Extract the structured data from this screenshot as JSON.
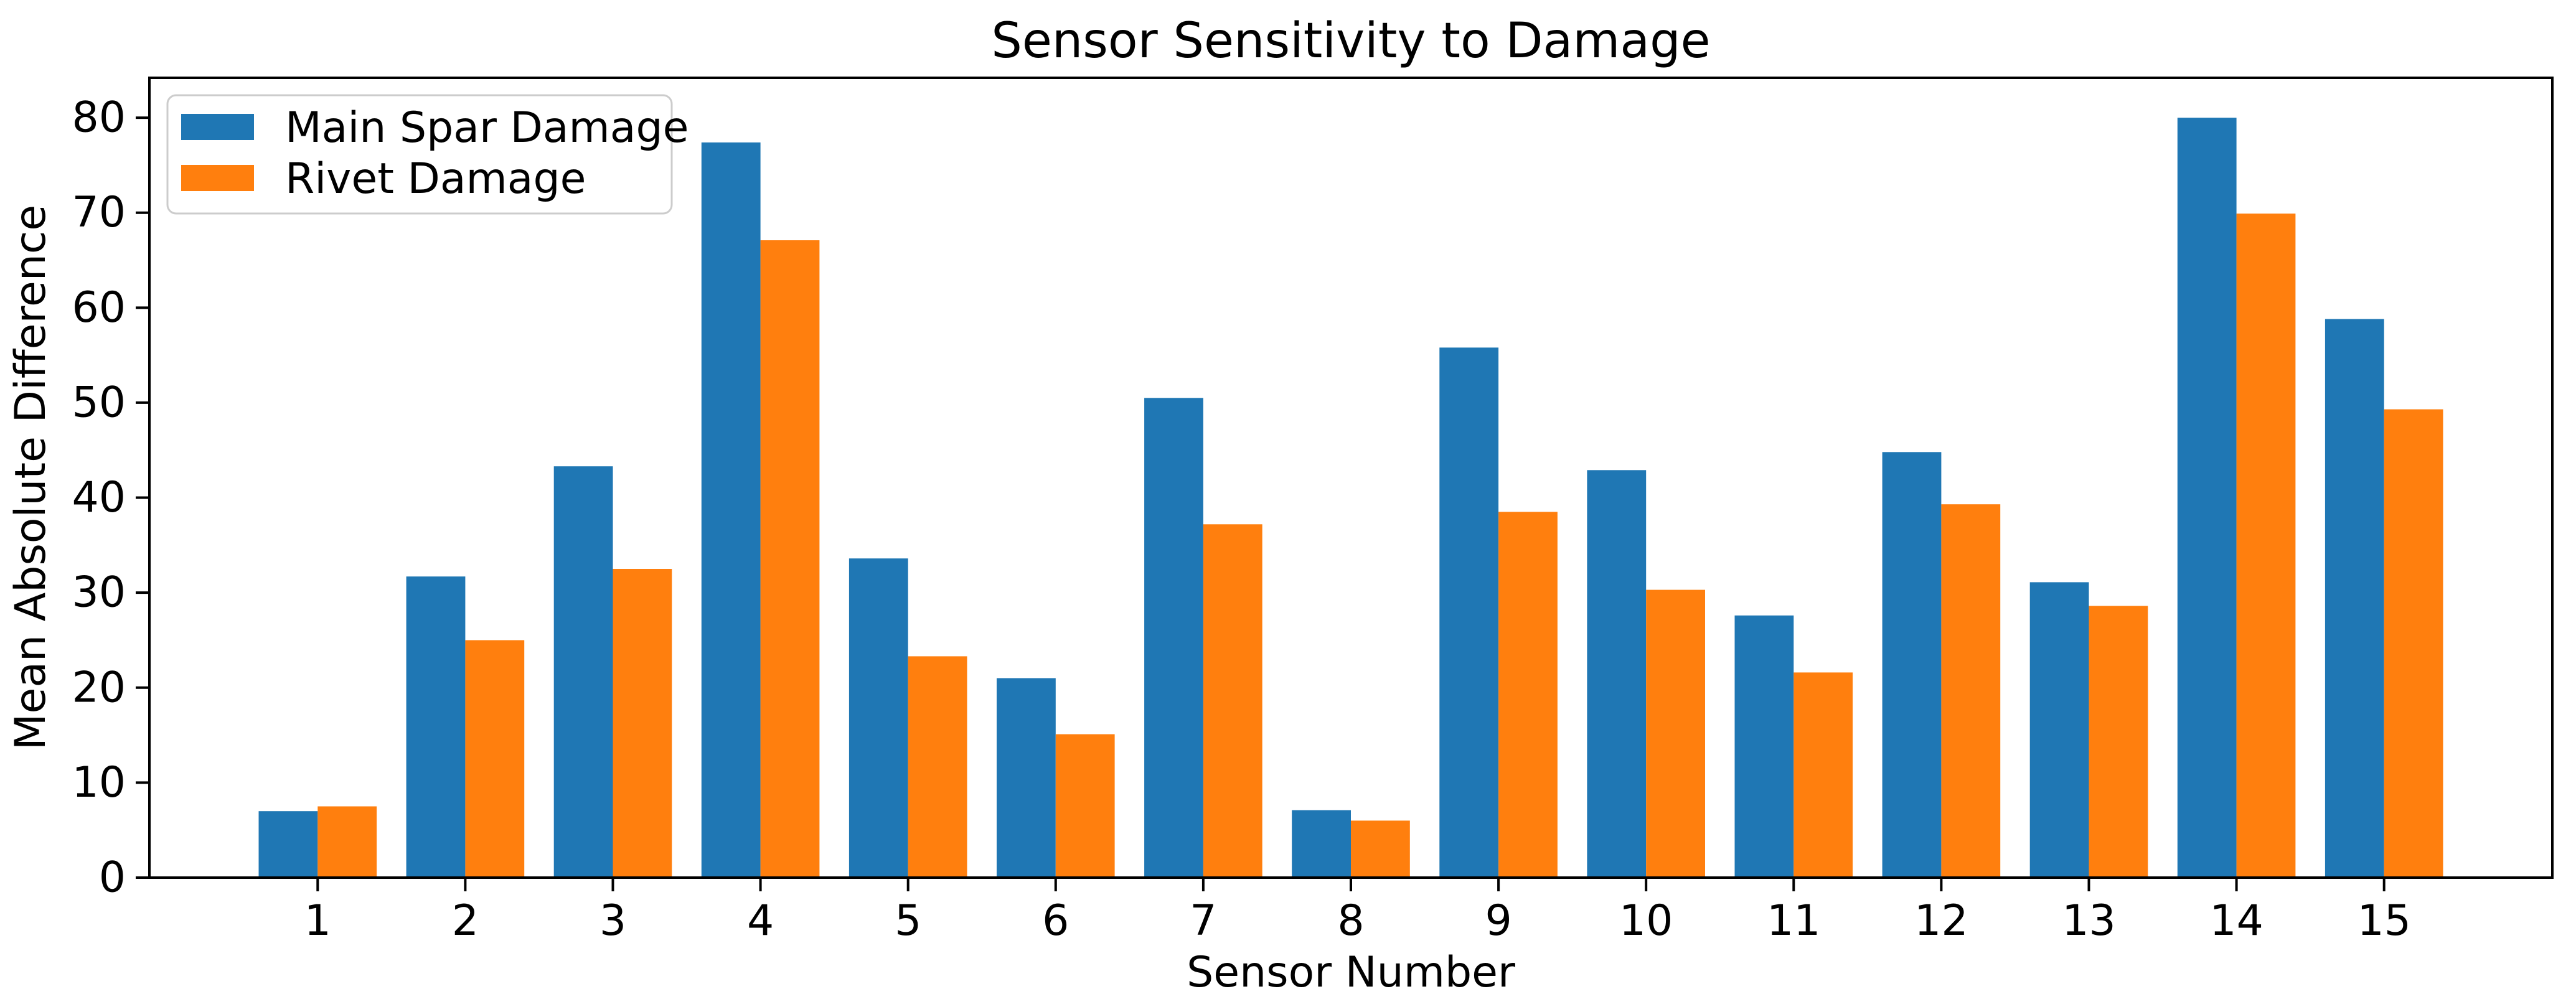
{
  "chart_data": {
    "type": "bar",
    "title": "Sensor Sensitivity to Damage",
    "xlabel": "Sensor Number",
    "ylabel": "Mean Absolute Difference",
    "categories": [
      "1",
      "2",
      "3",
      "4",
      "5",
      "6",
      "7",
      "8",
      "9",
      "10",
      "11",
      "12",
      "13",
      "14",
      "15"
    ],
    "series": [
      {
        "name": "Main Spar Damage",
        "color": "#1f77b4",
        "values": [
          7.0,
          31.7,
          43.3,
          77.4,
          33.6,
          21.0,
          50.5,
          7.1,
          55.8,
          42.9,
          27.6,
          44.8,
          31.1,
          80.0,
          58.8
        ]
      },
      {
        "name": "Rivet Damage",
        "color": "#ff7f0e",
        "values": [
          7.5,
          25.0,
          32.5,
          67.1,
          23.3,
          15.1,
          37.2,
          6.0,
          38.5,
          30.3,
          21.6,
          39.3,
          28.6,
          69.9,
          49.3
        ]
      }
    ],
    "ylim": [
      0,
      84.2
    ],
    "yticks": [
      0,
      10,
      20,
      30,
      40,
      50,
      60,
      70,
      80
    ],
    "grid": false,
    "legend_position": "upper left",
    "spine_color": "#000000",
    "background_color": "#ffffff"
  }
}
